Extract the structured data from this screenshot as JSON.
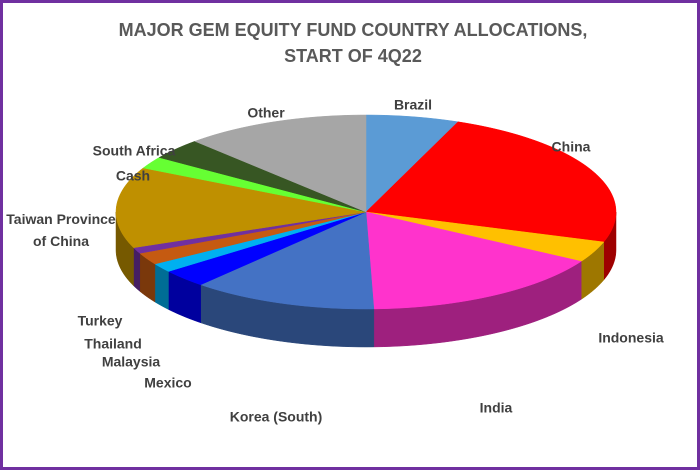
{
  "chart_data": {
    "type": "pie3d",
    "title": "MAJOR GEM EQUITY FUND COUNTRY ALLOCATIONS, START OF 4Q22",
    "categories": [
      "Brazil",
      "China",
      "Indonesia",
      "India",
      "Korea (South)",
      "Mexico",
      "Malaysia",
      "Thailand",
      "Turkey",
      "Taiwan Province of China",
      "Cash",
      "South Africa",
      "Other"
    ],
    "values": [
      6,
      24,
      3.5,
      16,
      12,
      3,
      1.5,
      2,
      1,
      13.5,
      2,
      3.5,
      12
    ],
    "colors": [
      "#5b9bd5",
      "#ff0000",
      "#ffc000",
      "#ff33cc",
      "#4472c4",
      "#0000ff",
      "#00b0f0",
      "#c55a11",
      "#7030a0",
      "#bf9000",
      "#66ff33",
      "#375623",
      "#a6a6a6"
    ]
  }
}
